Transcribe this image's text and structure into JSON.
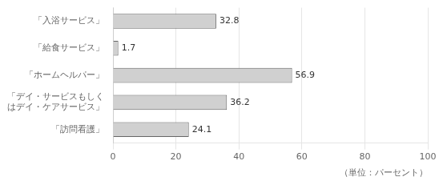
{
  "chart_data": {
    "type": "bar",
    "orientation": "horizontal",
    "categories": [
      "「入浴サービス」",
      "「給食サービス」",
      "「ホームヘルパー」",
      "「デイ・サービスもしく\nはデイ・ケアサービス」",
      "「訪問看護」"
    ],
    "values": [
      32.8,
      1.7,
      56.9,
      36.2,
      24.1
    ],
    "color": "#d0d0d0",
    "xlim": [
      0,
      100
    ],
    "xticks": [
      0,
      20,
      40,
      60,
      80,
      100
    ],
    "grid": true,
    "data_labels": true,
    "annotations": [
      "（単位：パーセント）"
    ]
  }
}
